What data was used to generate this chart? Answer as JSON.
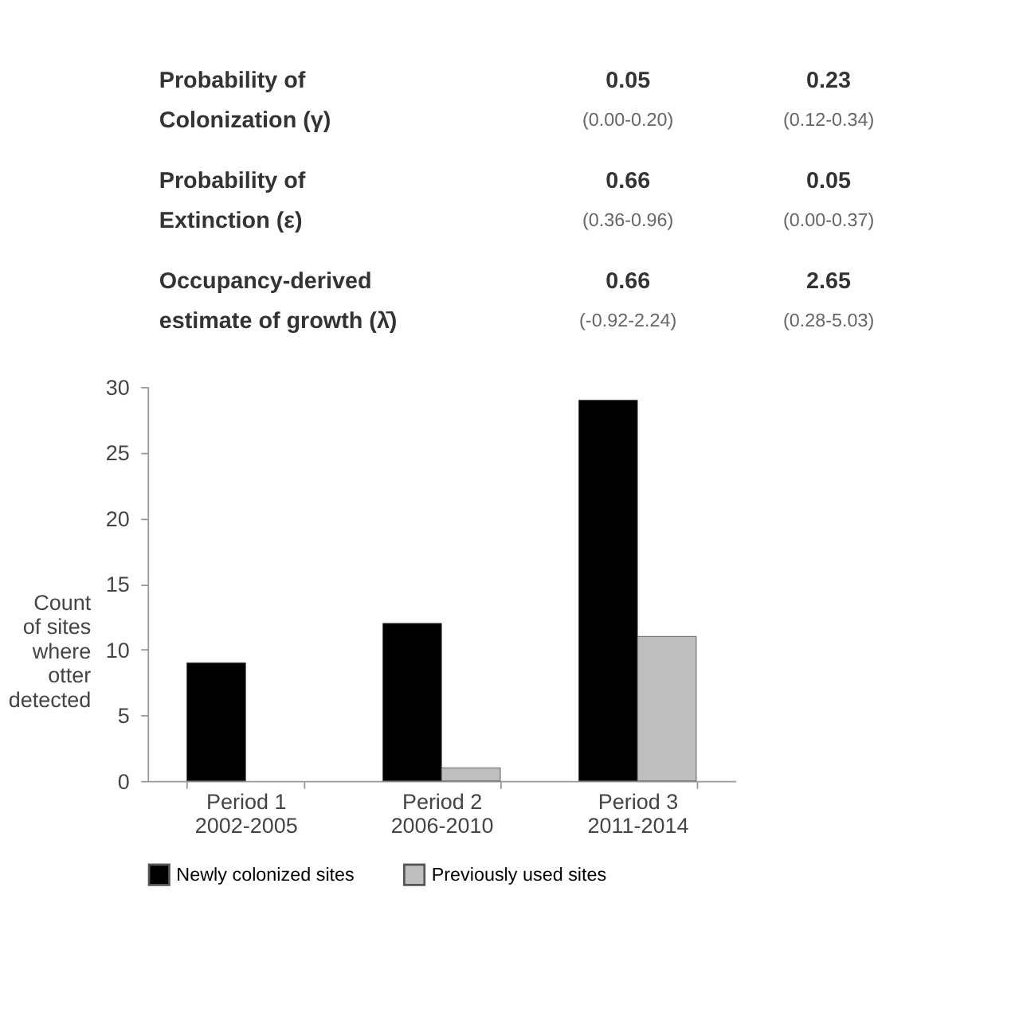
{
  "chart_data": {
    "type": "bar",
    "ylabel": "Count\nof sites\nwhere\notter\ndetected",
    "categories": [
      "Period 1\n2002-2005",
      "Period 2\n2006-2010",
      "Period 3\n2011-2014"
    ],
    "series": [
      {
        "name": "Newly colonized sites",
        "color": "#000000",
        "values": [
          9,
          12,
          29
        ]
      },
      {
        "name": "Previously used sites",
        "color": "#bfbfbf",
        "values": [
          null,
          1,
          11
        ]
      }
    ],
    "ylim": [
      0,
      30
    ],
    "yticks": [
      0,
      5,
      10,
      15,
      20,
      25,
      30
    ],
    "grid": false,
    "legend": "bottom",
    "annotations": [
      "Probability of\nColonization (γ)",
      "0.05\n(0.00-0.20)",
      "0.23\n(0.12-0.34)",
      "Probability of\nExtinction (ε)",
      "0.66\n(0.36-0.96)",
      "0.05\n(0.00-0.37)",
      "Occupancy-derived\nestimate of growth (λ̄)",
      "0.66\n(-0.92-2.24)",
      "2.65\n(0.28-5.03)"
    ]
  }
}
